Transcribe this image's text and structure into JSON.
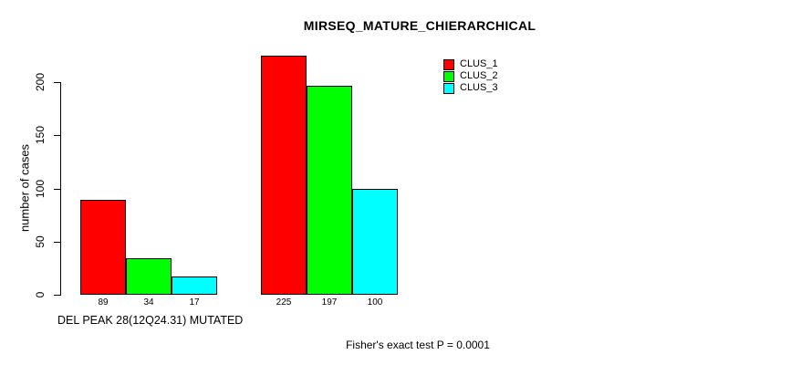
{
  "chart_data": {
    "type": "bar",
    "title": "MIRSEQ_MATURE_CHIERARCHICAL",
    "ylabel": "number of cases",
    "ylim": [
      0,
      233
    ],
    "yticks": [
      0,
      50,
      100,
      150,
      200
    ],
    "grid": false,
    "bar_value_labels_shown": true,
    "categories": [
      "DEL PEAK 28(12Q24.31) MUTATED",
      ""
    ],
    "series": [
      {
        "name": "CLUS_1",
        "color": "#ff0000",
        "values": [
          89,
          225
        ]
      },
      {
        "name": "CLUS_2",
        "color": "#00ff00",
        "values": [
          34,
          197
        ]
      },
      {
        "name": "CLUS_3",
        "color": "#00ffff",
        "values": [
          17,
          100
        ]
      }
    ],
    "legend": {
      "position": "top-right",
      "entries": [
        "CLUS_1",
        "CLUS_2",
        "CLUS_3"
      ]
    },
    "annotation": "Fisher's exact test P = 0.0001",
    "colors": {
      "background": "#ffffff",
      "axis": "#000000",
      "text": "#000000"
    }
  }
}
